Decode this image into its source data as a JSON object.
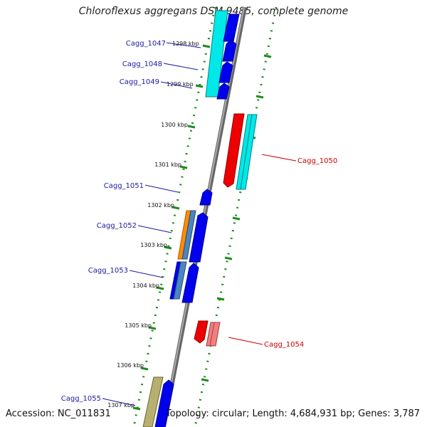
{
  "title": "Chloroflexus aggregans DSM 9485, complete genome",
  "accession": "Accession: NC_011831",
  "summary": "Topology: circular; Length: 4,684,931 bp; Genes: 3,787",
  "ticks": [
    "1298 kbp",
    "1299 kbp",
    "1300 kbp",
    "1301 kbp",
    "1302 kbp",
    "1303 kbp",
    "1304 kbp",
    "1305 kbp",
    "1306 kbp",
    "1307 kbp"
  ],
  "genes_inner": [
    "Cagg_1047",
    "Cagg_1048",
    "Cagg_1049",
    "Cagg_1051",
    "Cagg_1052",
    "Cagg_1053",
    "Cagg_1055"
  ],
  "genes_outer": [
    "Cagg_1050",
    "Cagg_1054"
  ],
  "colors": {
    "forward_label": "#1a1aa0",
    "reverse_label": "#cc0000",
    "cds_blue": "#0000ee",
    "cds_cyan": "#00e8e8",
    "cds_red": "#ee0000",
    "cds_pink": "#f08080",
    "cds_orange": "#ff8c00",
    "cds_steel": "#4a86c0",
    "cds_olive": "#b8b070",
    "backbone": "#888888",
    "tick": "#1e8c1e"
  }
}
